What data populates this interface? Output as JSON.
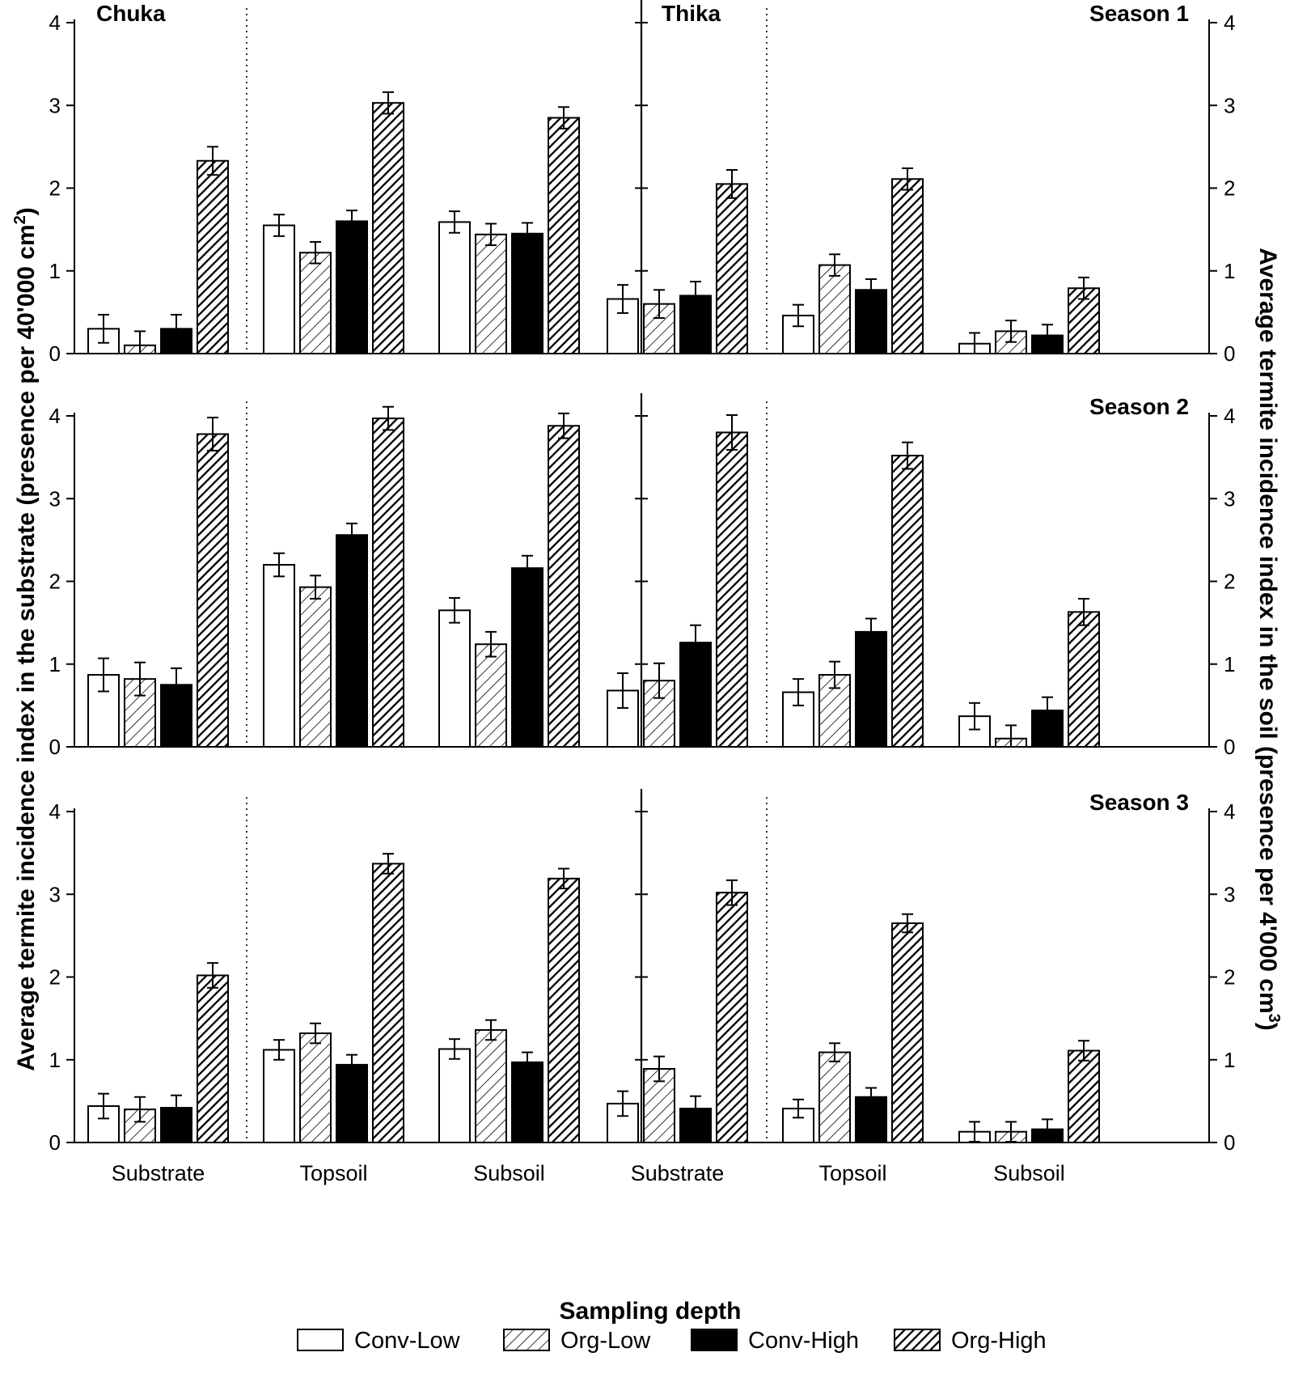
{
  "chart_data": {
    "type": "bar",
    "y_left_title_main": "Average termite incidence index in the substrate (presence per 40'000 cm",
    "y_left_title_sup": "2",
    "y_left_title_end": ")",
    "y_right_title_main": "Average termite incidence index in the soil (presence per 4'000 cm",
    "y_right_title_sup": "3",
    "y_right_title_end": ")",
    "xlabel": "Sampling depth",
    "categories": [
      "Substrate",
      "Topsoil",
      "Subsoil"
    ],
    "sites": [
      "Chuka",
      "Thika"
    ],
    "series_names": [
      "Conv-Low",
      "Org-Low",
      "Conv-High",
      "Org-High"
    ],
    "ylim": [
      0,
      4
    ],
    "yticks": [
      0,
      1,
      2,
      3,
      4
    ],
    "seasons": [
      {
        "label": "Season 1",
        "sites": [
          {
            "site": "Chuka",
            "groups": [
              {
                "category": "Substrate",
                "values": [
                  0.3,
                  0.1,
                  0.3,
                  2.33
                ],
                "errors": [
                  0.17,
                  0.17,
                  0.17,
                  0.17
                ]
              },
              {
                "category": "Topsoil",
                "values": [
                  1.55,
                  1.22,
                  1.6,
                  3.03
                ],
                "errors": [
                  0.13,
                  0.13,
                  0.13,
                  0.13
                ]
              },
              {
                "category": "Subsoil",
                "values": [
                  1.59,
                  1.44,
                  1.45,
                  2.85
                ],
                "errors": [
                  0.13,
                  0.13,
                  0.13,
                  0.13
                ]
              }
            ]
          },
          {
            "site": "Thika",
            "groups": [
              {
                "category": "Substrate",
                "values": [
                  0.66,
                  0.6,
                  0.7,
                  2.05
                ],
                "errors": [
                  0.17,
                  0.17,
                  0.17,
                  0.17
                ]
              },
              {
                "category": "Topsoil",
                "values": [
                  0.46,
                  1.07,
                  0.77,
                  2.11
                ],
                "errors": [
                  0.13,
                  0.13,
                  0.13,
                  0.13
                ]
              },
              {
                "category": "Subsoil",
                "values": [
                  0.12,
                  0.27,
                  0.22,
                  0.79
                ],
                "errors": [
                  0.13,
                  0.13,
                  0.13,
                  0.13
                ]
              }
            ]
          }
        ]
      },
      {
        "label": "Season 2",
        "sites": [
          {
            "site": "Chuka",
            "groups": [
              {
                "category": "Substrate",
                "values": [
                  0.87,
                  0.82,
                  0.75,
                  3.78
                ],
                "errors": [
                  0.2,
                  0.2,
                  0.2,
                  0.2
                ]
              },
              {
                "category": "Topsoil",
                "values": [
                  2.2,
                  1.93,
                  2.56,
                  3.97
                ],
                "errors": [
                  0.14,
                  0.14,
                  0.14,
                  0.14
                ]
              },
              {
                "category": "Subsoil",
                "values": [
                  1.65,
                  1.24,
                  2.16,
                  3.88
                ],
                "errors": [
                  0.15,
                  0.15,
                  0.15,
                  0.15
                ]
              }
            ]
          },
          {
            "site": "Thika",
            "groups": [
              {
                "category": "Substrate",
                "values": [
                  0.68,
                  0.8,
                  1.26,
                  3.8
                ],
                "errors": [
                  0.21,
                  0.21,
                  0.21,
                  0.21
                ]
              },
              {
                "category": "Topsoil",
                "values": [
                  0.66,
                  0.87,
                  1.39,
                  3.52
                ],
                "errors": [
                  0.16,
                  0.16,
                  0.16,
                  0.16
                ]
              },
              {
                "category": "Subsoil",
                "values": [
                  0.37,
                  0.1,
                  0.44,
                  1.63
                ],
                "errors": [
                  0.16,
                  0.16,
                  0.16,
                  0.16
                ]
              }
            ]
          }
        ]
      },
      {
        "label": "Season 3",
        "sites": [
          {
            "site": "Chuka",
            "groups": [
              {
                "category": "Substrate",
                "values": [
                  0.44,
                  0.4,
                  0.42,
                  2.02
                ],
                "errors": [
                  0.15,
                  0.15,
                  0.15,
                  0.15
                ]
              },
              {
                "category": "Topsoil",
                "values": [
                  1.12,
                  1.32,
                  0.94,
                  3.37
                ],
                "errors": [
                  0.12,
                  0.12,
                  0.12,
                  0.12
                ]
              },
              {
                "category": "Subsoil",
                "values": [
                  1.13,
                  1.36,
                  0.97,
                  3.19
                ],
                "errors": [
                  0.12,
                  0.12,
                  0.12,
                  0.12
                ]
              }
            ]
          },
          {
            "site": "Thika",
            "groups": [
              {
                "category": "Substrate",
                "values": [
                  0.47,
                  0.89,
                  0.41,
                  3.02
                ],
                "errors": [
                  0.15,
                  0.15,
                  0.15,
                  0.15
                ]
              },
              {
                "category": "Topsoil",
                "values": [
                  0.41,
                  1.09,
                  0.55,
                  2.65
                ],
                "errors": [
                  0.11,
                  0.11,
                  0.11,
                  0.11
                ]
              },
              {
                "category": "Subsoil",
                "values": [
                  0.13,
                  0.13,
                  0.16,
                  1.11
                ],
                "errors": [
                  0.12,
                  0.12,
                  0.12,
                  0.12
                ]
              }
            ]
          }
        ]
      }
    ]
  },
  "legend": [
    {
      "label": "Conv-Low",
      "style": "white"
    },
    {
      "label": "Org-Low",
      "style": "hatch-light"
    },
    {
      "label": "Conv-High",
      "style": "black"
    },
    {
      "label": "Org-High",
      "style": "hatch-dark"
    }
  ]
}
